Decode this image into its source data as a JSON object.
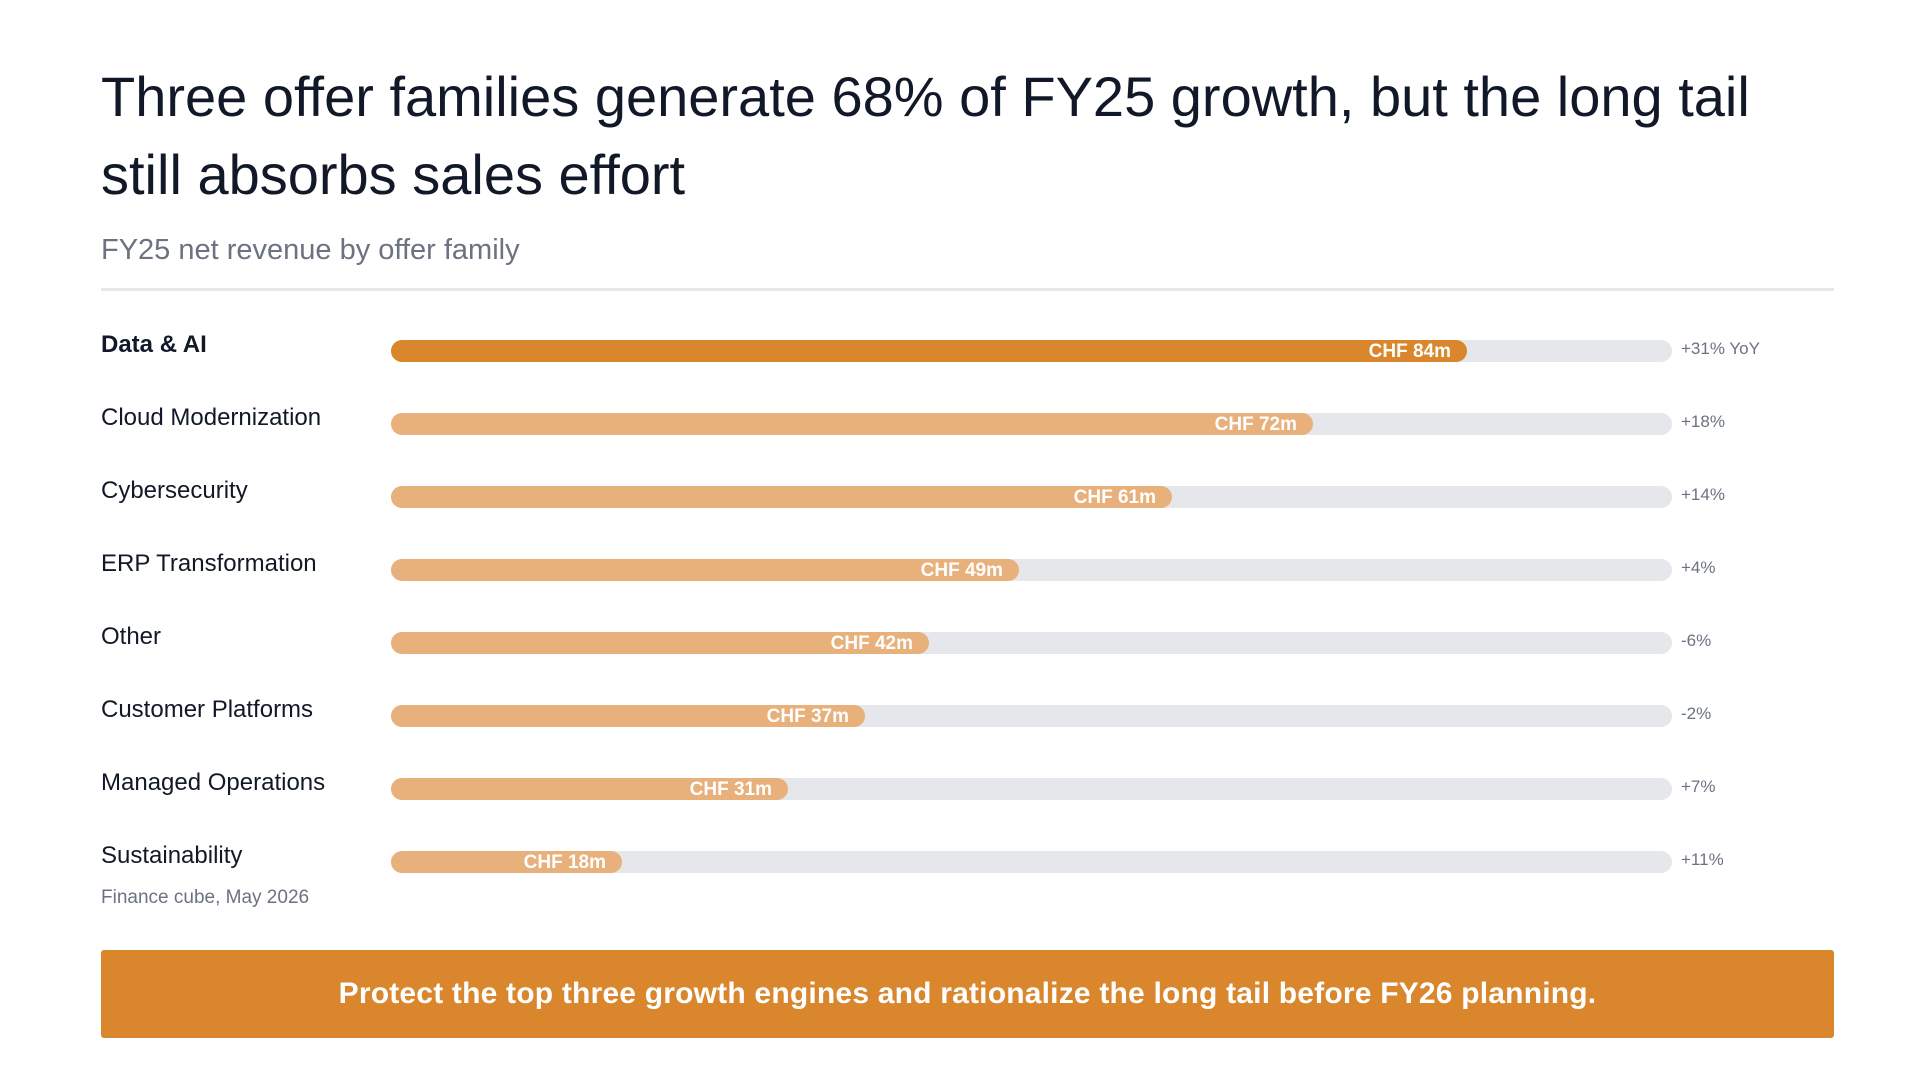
{
  "header": {
    "title": "Three offer families generate 68% of FY25 growth, but the long tail still absorbs sales effort",
    "subtitle": "FY25 net revenue by offer family"
  },
  "colors": {
    "highlight": "#d9862c",
    "muted_bar": "#e8b07a",
    "track": "#e5e7eb",
    "text": "#111827",
    "secondary_text": "#6b7280"
  },
  "chart_data": {
    "type": "bar",
    "orientation": "horizontal",
    "categories": [
      "Data & AI",
      "Cloud Modernization",
      "Cybersecurity",
      "ERP Transformation",
      "Other",
      "Customer Platforms",
      "Managed Operations",
      "Sustainability"
    ],
    "values": [
      84,
      72,
      61,
      49,
      42,
      37,
      31,
      18
    ],
    "value_labels": [
      "CHF 84m",
      "CHF 72m",
      "CHF 61m",
      "CHF 49m",
      "CHF 42m",
      "CHF 37m",
      "CHF 31m",
      "CHF 18m"
    ],
    "growth_labels": [
      "+31% YoY",
      "+18%",
      "+14%",
      "+4%",
      "-6%",
      "-2%",
      "+7%",
      "+11%"
    ],
    "highlighted_category": "Data & AI",
    "xlim": [
      0,
      100
    ],
    "grid": false,
    "legend": "none"
  },
  "source": "Finance cube, May 2026",
  "callout": {
    "text": "Protect the top three growth engines and rationalize the long tail before FY26 planning."
  }
}
